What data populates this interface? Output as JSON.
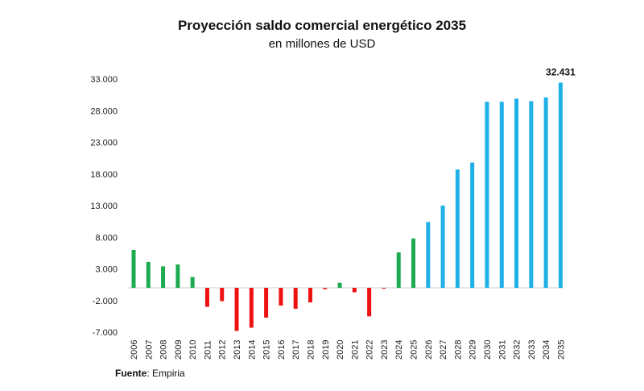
{
  "chart_data": {
    "type": "bar",
    "title": "Proyección saldo comercial energético 2035",
    "subtitle": "en millones de USD",
    "xlabel": "",
    "ylabel": "",
    "ylim": [
      -7000,
      33000
    ],
    "yticks": [
      33000,
      28000,
      23000,
      18000,
      13000,
      8000,
      3000,
      -2000,
      -7000
    ],
    "ytick_labels": [
      "33.000",
      "28.000",
      "23.000",
      "18.000",
      "13.000",
      "8.000",
      "3.000",
      "-2.000",
      "-7.000"
    ],
    "grid": false,
    "categories": [
      "2006",
      "2007",
      "2008",
      "2009",
      "2010",
      "2011",
      "2012",
      "2013",
      "2014",
      "2015",
      "2016",
      "2017",
      "2018",
      "2019",
      "2020",
      "2021",
      "2022",
      "2023",
      "2024",
      "2025",
      "2026",
      "2027",
      "2028",
      "2029",
      "2030",
      "2031",
      "2032",
      "2033",
      "2034",
      "2035"
    ],
    "values": [
      6000,
      4100,
      3400,
      3700,
      1700,
      -3000,
      -2100,
      -6800,
      -6300,
      -4700,
      -2800,
      -3300,
      -2300,
      -200,
      800,
      -700,
      -4500,
      -100,
      5600,
      7800,
      10400,
      13000,
      18700,
      19800,
      29400,
      29400,
      29900,
      29500,
      30100,
      32431
    ],
    "series_colors": {
      "surplus": "#1eaa50",
      "deficit": "#ee1111",
      "projection": "#1fb1e6"
    },
    "segments": [
      "surplus",
      "surplus",
      "surplus",
      "surplus",
      "surplus",
      "deficit",
      "deficit",
      "deficit",
      "deficit",
      "deficit",
      "deficit",
      "deficit",
      "deficit",
      "deficit",
      "surplus",
      "deficit",
      "deficit",
      "deficit",
      "surplus",
      "surplus",
      "projection",
      "projection",
      "projection",
      "projection",
      "projection",
      "projection",
      "projection",
      "projection",
      "projection",
      "projection"
    ],
    "annotations": [
      {
        "category": "2035",
        "text": "32.431"
      }
    ]
  },
  "source": {
    "label": "Fuente",
    "value": "Empiria"
  }
}
